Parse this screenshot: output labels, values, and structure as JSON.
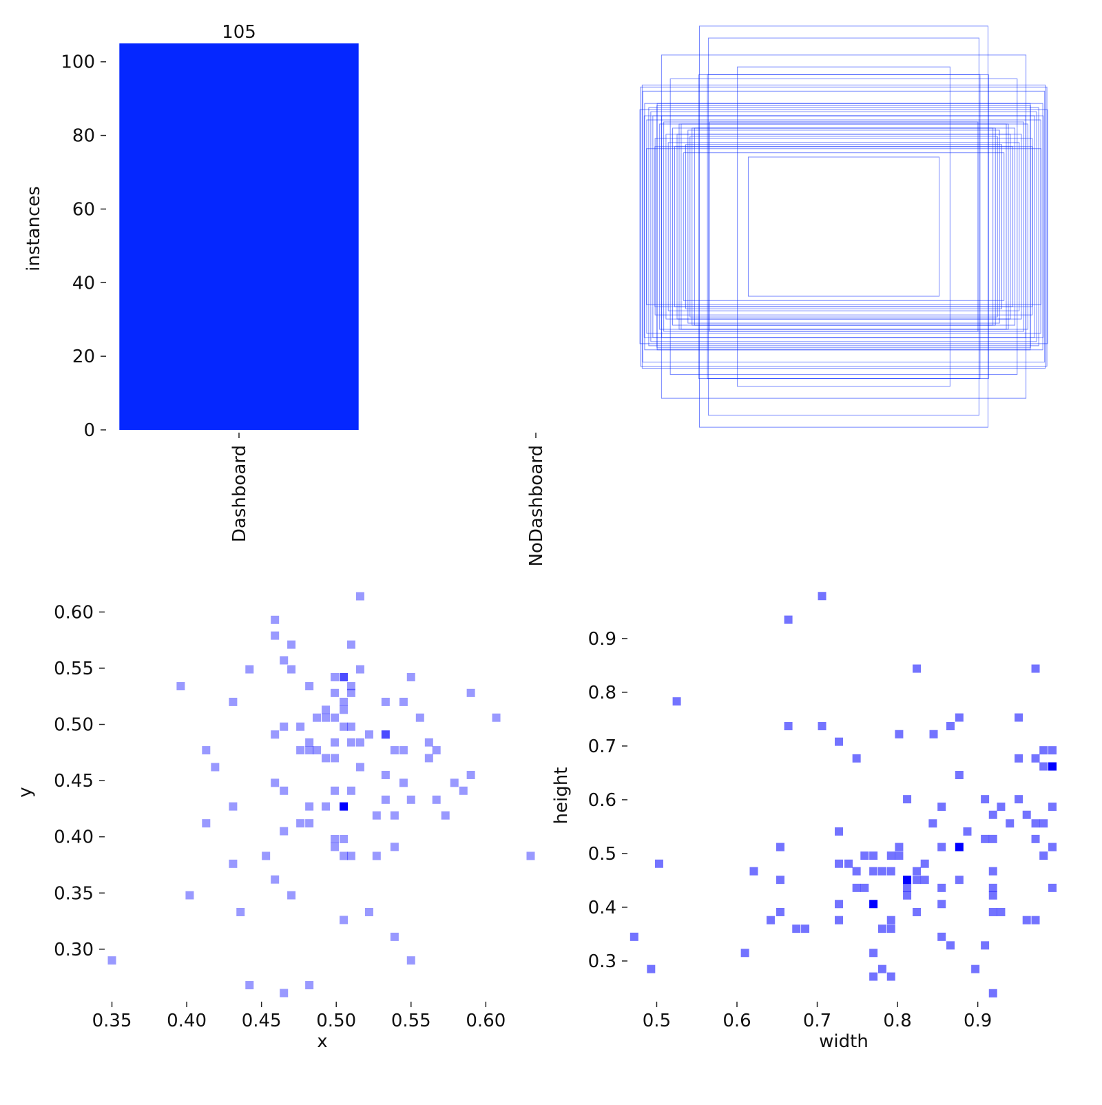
{
  "chart_data": [
    {
      "type": "bar",
      "categories": [
        "Dashboard",
        "NoDashboard"
      ],
      "values": [
        105,
        0
      ],
      "color": "#0527ff",
      "ylabel": "instances",
      "ylim": [
        0,
        105
      ],
      "yticks": [
        0,
        20,
        40,
        60,
        80,
        100
      ]
    },
    {
      "type": "boxes",
      "color": "#0527ff",
      "widths": [
        0.703,
        0.888,
        0.659,
        0.518,
        0.465,
        0.99,
        0.979,
        0.97,
        0.96,
        0.95,
        0.94,
        0.93,
        0.92,
        0.91,
        0.897,
        0.877,
        0.866,
        0.855,
        0.845,
        0.834,
        0.812,
        0.792,
        0.77,
        0.749,
        0.727,
        0.982,
        0.972,
        0.993,
        0.961,
        0.919,
        0.909,
        0.887,
        0.824,
        0.802,
        0.781,
        0.759,
        0.739,
        0.706,
        0.664,
        0.654
      ],
      "heights": [
        0.977,
        0.836,
        0.919,
        0.778,
        0.339,
        0.68,
        0.66,
        0.6,
        0.52,
        0.58,
        0.56,
        0.54,
        0.39,
        0.59,
        0.5,
        0.51,
        0.45,
        0.41,
        0.72,
        0.48,
        0.45,
        0.5,
        0.4,
        0.44,
        0.48,
        0.69,
        0.54,
        0.57,
        0.38,
        0.43,
        0.6,
        0.54,
        0.39,
        0.5,
        0.36,
        0.47,
        0.48,
        0.74,
        0.74,
        0.51
      ]
    },
    {
      "type": "heatmap",
      "xlabel": "x",
      "ylabel": "y",
      "color": "#0000ff",
      "xlim": [
        0.347,
        0.633
      ],
      "ylim": [
        0.257,
        0.618
      ],
      "xticks": [
        0.35,
        {
          "value": 0.4,
          "label": "0.40"
        },
        0.45,
        {
          "value": 0.5,
          "label": "0.50"
        },
        0.55,
        {
          "value": 0.6,
          "label": "0.60"
        }
      ],
      "yticks": [
        {
          "value": 0.3,
          "label": "0.30"
        },
        0.35,
        {
          "value": 0.4,
          "label": "0.40"
        },
        0.45,
        {
          "value": 0.5,
          "label": "0.50"
        },
        0.55,
        {
          "value": 0.6,
          "label": "0.60"
        }
      ],
      "x": [
        0.516,
        0.459,
        0.459,
        0.47,
        0.51,
        0.465,
        0.442,
        0.47,
        0.516,
        0.482,
        0.499,
        0.505,
        0.55,
        0.396,
        0.51,
        0.51,
        0.499,
        0.59,
        0.431,
        0.505,
        0.533,
        0.545,
        0.493,
        0.505,
        0.487,
        0.493,
        0.499,
        0.556,
        0.607,
        0.465,
        0.476,
        0.505,
        0.51,
        0.459,
        0.499,
        0.482,
        0.51,
        0.516,
        0.522,
        0.533,
        0.413,
        0.476,
        0.482,
        0.487,
        0.539,
        0.545,
        0.562,
        0.567,
        0.493,
        0.499,
        0.562,
        0.419,
        0.516,
        0.533,
        0.59,
        0.459,
        0.545,
        0.579,
        0.465,
        0.499,
        0.51,
        0.585,
        0.533,
        0.55,
        0.567,
        0.431,
        0.482,
        0.493,
        0.505,
        0.527,
        0.539,
        0.573,
        0.413,
        0.476,
        0.482,
        0.465,
        0.499,
        0.505,
        0.499,
        0.539,
        0.505,
        0.51,
        0.453,
        0.527,
        0.63,
        0.431,
        0.459,
        0.402,
        0.47,
        0.436,
        0.522,
        0.505,
        0.539,
        0.35,
        0.55,
        0.442,
        0.482,
        0.465
      ],
      "y": [
        0.614,
        0.593,
        0.579,
        0.571,
        0.571,
        0.557,
        0.549,
        0.549,
        0.549,
        0.534,
        0.542,
        0.542,
        0.542,
        0.534,
        0.534,
        0.528,
        0.528,
        0.528,
        0.52,
        0.52,
        0.52,
        0.52,
        0.513,
        0.513,
        0.506,
        0.506,
        0.506,
        0.506,
        0.506,
        0.498,
        0.498,
        0.498,
        0.498,
        0.491,
        0.484,
        0.484,
        0.484,
        0.484,
        0.491,
        0.491,
        0.477,
        0.477,
        0.477,
        0.477,
        0.477,
        0.477,
        0.484,
        0.477,
        0.47,
        0.47,
        0.47,
        0.462,
        0.462,
        0.455,
        0.455,
        0.448,
        0.448,
        0.448,
        0.441,
        0.441,
        0.441,
        0.441,
        0.433,
        0.433,
        0.433,
        0.427,
        0.427,
        0.427,
        0.427,
        0.419,
        0.419,
        0.419,
        0.412,
        0.412,
        0.412,
        0.405,
        0.398,
        0.398,
        0.391,
        0.391,
        0.383,
        0.383,
        0.383,
        0.383,
        0.383,
        0.376,
        0.362,
        0.348,
        0.348,
        0.333,
        0.333,
        0.326,
        0.311,
        0.29,
        0.29,
        0.268,
        0.268,
        0.261
      ],
      "counts": [
        1,
        1,
        1,
        1,
        1,
        1,
        1,
        1,
        1,
        1,
        1,
        2,
        1,
        1,
        1,
        1,
        1,
        1,
        1,
        1,
        1,
        1,
        1,
        1,
        1,
        1,
        1,
        1,
        1,
        1,
        1,
        1,
        1,
        1,
        1,
        1,
        1,
        1,
        1,
        2,
        1,
        1,
        1,
        1,
        1,
        1,
        1,
        1,
        1,
        1,
        1,
        1,
        1,
        1,
        1,
        1,
        1,
        1,
        1,
        1,
        1,
        1,
        1,
        1,
        1,
        1,
        1,
        1,
        3,
        1,
        1,
        1,
        1,
        1,
        1,
        1,
        1,
        1,
        1,
        1,
        1,
        1,
        1,
        1,
        1,
        1,
        1,
        1,
        1,
        1,
        1,
        1,
        1,
        1,
        1,
        1,
        1,
        1
      ]
    },
    {
      "type": "heatmap",
      "xlabel": "width",
      "ylabel": "height",
      "color": "#0000ff",
      "xlim": [
        0.467,
        0.999
      ],
      "ylim": [
        0.232,
        0.987
      ],
      "xticks": [
        0.5,
        0.6,
        0.7,
        0.8,
        0.9
      ],
      "yticks": [
        0.3,
        0.4,
        0.5,
        0.6,
        0.7,
        0.8,
        0.9
      ],
      "x": [
        0.706,
        0.664,
        0.525,
        0.824,
        0.972,
        0.664,
        0.706,
        0.866,
        0.877,
        0.951,
        0.727,
        0.802,
        0.845,
        0.749,
        0.951,
        0.982,
        0.993,
        0.972,
        0.982,
        0.993,
        0.877,
        0.812,
        0.855,
        0.909,
        0.929,
        0.951,
        0.919,
        0.961,
        0.993,
        0.844,
        0.887,
        0.94,
        0.972,
        0.982,
        0.727,
        0.909,
        0.919,
        0.972,
        0.993,
        0.654,
        0.802,
        0.855,
        0.877,
        0.503,
        0.727,
        0.739,
        0.759,
        0.77,
        0.792,
        0.802,
        0.834,
        0.982,
        0.621,
        0.749,
        0.77,
        0.781,
        0.792,
        0.824,
        0.654,
        0.812,
        0.824,
        0.834,
        0.877,
        0.919,
        0.749,
        0.759,
        0.812,
        0.855,
        0.919,
        0.993,
        0.812,
        0.919,
        0.727,
        0.77,
        0.855,
        0.654,
        0.727,
        0.824,
        0.919,
        0.929,
        0.642,
        0.792,
        0.961,
        0.972,
        0.674,
        0.685,
        0.781,
        0.792,
        0.472,
        0.855,
        0.866,
        0.909,
        0.61,
        0.77,
        0.493,
        0.781,
        0.897,
        0.77,
        0.792,
        0.919
      ],
      "y": [
        0.979,
        0.935,
        0.783,
        0.844,
        0.844,
        0.737,
        0.737,
        0.737,
        0.753,
        0.753,
        0.708,
        0.722,
        0.722,
        0.677,
        0.677,
        0.692,
        0.692,
        0.677,
        0.662,
        0.662,
        0.646,
        0.601,
        0.587,
        0.601,
        0.587,
        0.601,
        0.572,
        0.572,
        0.587,
        0.556,
        0.541,
        0.556,
        0.556,
        0.556,
        0.541,
        0.527,
        0.527,
        0.527,
        0.512,
        0.512,
        0.512,
        0.512,
        0.512,
        0.481,
        0.481,
        0.481,
        0.496,
        0.496,
        0.496,
        0.496,
        0.481,
        0.496,
        0.467,
        0.467,
        0.467,
        0.467,
        0.467,
        0.467,
        0.451,
        0.451,
        0.451,
        0.451,
        0.451,
        0.467,
        0.436,
        0.436,
        0.436,
        0.436,
        0.436,
        0.436,
        0.422,
        0.422,
        0.406,
        0.406,
        0.406,
        0.391,
        0.376,
        0.391,
        0.391,
        0.391,
        0.376,
        0.376,
        0.376,
        0.376,
        0.36,
        0.36,
        0.36,
        0.36,
        0.345,
        0.345,
        0.329,
        0.329,
        0.315,
        0.315,
        0.285,
        0.285,
        0.285,
        0.271,
        0.271,
        0.24
      ],
      "counts": [
        1,
        1,
        1,
        1,
        1,
        1,
        1,
        1,
        1,
        1,
        1,
        1,
        1,
        1,
        1,
        1,
        1,
        1,
        1,
        2,
        1,
        1,
        1,
        1,
        1,
        1,
        1,
        1,
        1,
        1,
        1,
        1,
        1,
        1,
        1,
        1,
        1,
        1,
        1,
        1,
        1,
        1,
        2,
        1,
        1,
        1,
        1,
        1,
        1,
        1,
        1,
        1,
        1,
        1,
        1,
        1,
        1,
        1,
        1,
        2,
        1,
        1,
        1,
        1,
        1,
        1,
        1,
        1,
        1,
        1,
        1,
        1,
        1,
        2,
        1,
        1,
        1,
        1,
        1,
        1,
        1,
        1,
        1,
        1,
        1,
        1,
        1,
        1,
        1,
        1,
        1,
        1,
        1,
        1,
        1,
        1,
        1,
        1,
        1,
        1
      ]
    }
  ]
}
